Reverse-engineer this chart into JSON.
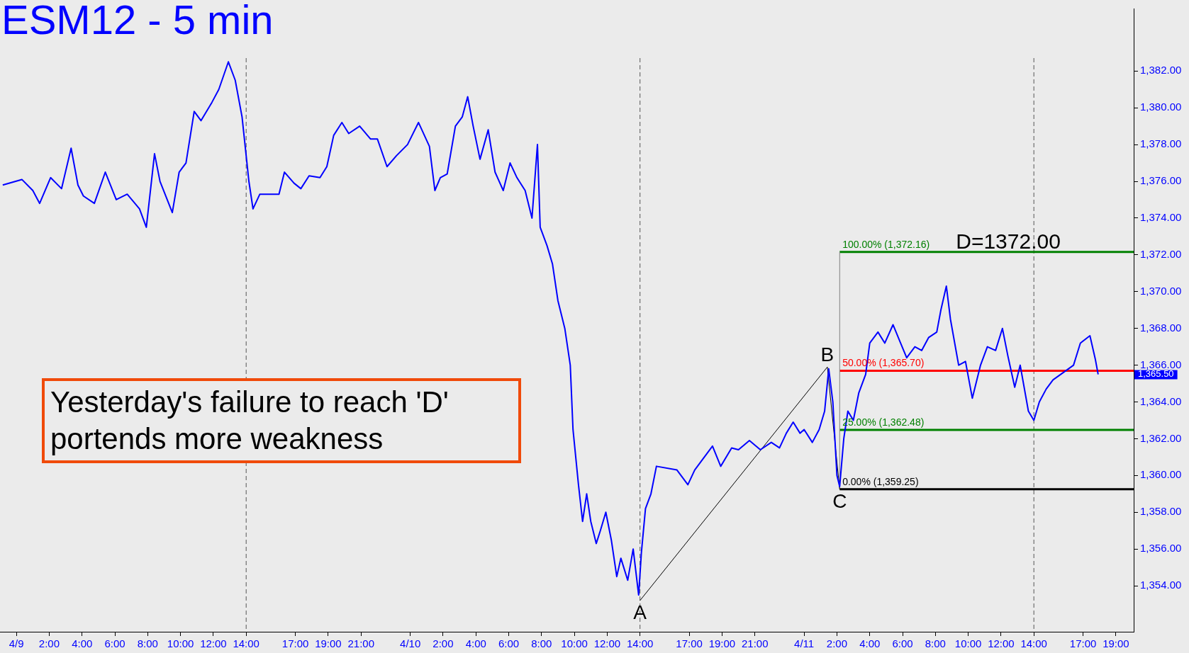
{
  "chart_data": {
    "type": "line",
    "title": "ESM12 - 5 min",
    "xlim": [
      "--04-08T23:00",
      "--04-11T20:05"
    ],
    "ylim": [
      1351.5,
      1385.4
    ],
    "xticks": [
      {
        "value": "--04-09T00:00",
        "label": "4/9"
      },
      {
        "value": "--04-09T02:00",
        "label": "2:00"
      },
      {
        "value": "--04-09T04:00",
        "label": "4:00"
      },
      {
        "value": "--04-09T06:00",
        "label": "6:00"
      },
      {
        "value": "--04-09T08:00",
        "label": "8:00"
      },
      {
        "value": "--04-09T10:00",
        "label": "10:00"
      },
      {
        "value": "--04-09T12:00",
        "label": "12:00"
      },
      {
        "value": "--04-09T14:00",
        "label": "14:00"
      },
      {
        "value": "--04-09T17:00",
        "label": "17:00"
      },
      {
        "value": "--04-09T19:00",
        "label": "19:00"
      },
      {
        "value": "--04-09T21:00",
        "label": "21:00"
      },
      {
        "value": "--04-10T00:00",
        "label": "4/10"
      },
      {
        "value": "--04-10T02:00",
        "label": "2:00"
      },
      {
        "value": "--04-10T04:00",
        "label": "4:00"
      },
      {
        "value": "--04-10T06:00",
        "label": "6:00"
      },
      {
        "value": "--04-10T08:00",
        "label": "8:00"
      },
      {
        "value": "--04-10T10:00",
        "label": "10:00"
      },
      {
        "value": "--04-10T12:00",
        "label": "12:00"
      },
      {
        "value": "--04-10T14:00",
        "label": "14:00"
      },
      {
        "value": "--04-10T17:00",
        "label": "17:00"
      },
      {
        "value": "--04-10T19:00",
        "label": "19:00"
      },
      {
        "value": "--04-10T21:00",
        "label": "21:00"
      },
      {
        "value": "--04-11T00:00",
        "label": "4/11"
      },
      {
        "value": "--04-11T02:00",
        "label": "2:00"
      },
      {
        "value": "--04-11T04:00",
        "label": "4:00"
      },
      {
        "value": "--04-11T06:00",
        "label": "6:00"
      },
      {
        "value": "--04-11T08:00",
        "label": "8:00"
      },
      {
        "value": "--04-11T10:00",
        "label": "10:00"
      },
      {
        "value": "--04-11T12:00",
        "label": "12:00"
      },
      {
        "value": "--04-11T14:00",
        "label": "14:00"
      },
      {
        "value": "--04-11T17:00",
        "label": "17:00"
      },
      {
        "value": "--04-11T19:00",
        "label": "19:00"
      }
    ],
    "yticks": [
      {
        "value": 1354,
        "label": "1,354.00"
      },
      {
        "value": 1356,
        "label": "1,356.00"
      },
      {
        "value": 1358,
        "label": "1,358.00"
      },
      {
        "value": 1360,
        "label": "1,360.00"
      },
      {
        "value": 1362,
        "label": "1,362.00"
      },
      {
        "value": 1364,
        "label": "1,364.00"
      },
      {
        "value": 1366,
        "label": "1,366.00"
      },
      {
        "value": 1368,
        "label": "1,368.00"
      },
      {
        "value": 1370,
        "label": "1,370.00"
      },
      {
        "value": 1372,
        "label": "1,372.00"
      },
      {
        "value": 1374,
        "label": "1,374.00"
      },
      {
        "value": 1376,
        "label": "1,376.00"
      },
      {
        "value": 1378,
        "label": "1,378.00"
      },
      {
        "value": 1380,
        "label": "1,380.00"
      },
      {
        "value": 1382,
        "label": "1,382.00"
      }
    ],
    "grid": false,
    "series": [
      {
        "color": "#0000ff",
        "x": [
          "--04-08T23:10",
          "--04-09T00:20",
          "--04-09T01:00",
          "--04-09T01:25",
          "--04-09T02:05",
          "--04-09T02:45",
          "--04-09T03:20",
          "--04-09T03:45",
          "--04-09T04:05",
          "--04-09T04:45",
          "--04-09T05:25",
          "--04-09T06:05",
          "--04-09T06:45",
          "--04-09T07:30",
          "--04-09T07:55",
          "--04-09T08:25",
          "--04-09T08:45",
          "--04-09T09:30",
          "--04-09T09:55",
          "--04-09T10:20",
          "--04-09T10:50",
          "--04-09T11:15",
          "--04-09T11:55",
          "--04-09T12:20",
          "--04-09T12:55",
          "--04-09T13:20",
          "--04-09T13:45",
          "--04-09T14:10",
          "--04-09T14:25",
          "--04-09T14:50",
          "--04-09T16:00",
          "--04-09T16:20",
          "--04-09T16:55",
          "--04-09T17:20",
          "--04-09T17:50",
          "--04-09T18:30",
          "--04-09T18:55",
          "--04-09T19:20",
          "--04-09T19:50",
          "--04-09T20:15",
          "--04-09T20:55",
          "--04-09T21:35",
          "--04-09T22:00",
          "--04-09T22:35",
          "--04-09T23:10",
          "--04-09T23:50",
          "--04-10T00:30",
          "--04-10T01:10",
          "--04-10T01:30",
          "--04-10T01:50",
          "--04-10T02:15",
          "--04-10T02:45",
          "--04-10T03:10",
          "--04-10T03:30",
          "--04-10T03:50",
          "--04-10T04:15",
          "--04-10T04:45",
          "--04-10T05:10",
          "--04-10T05:40",
          "--04-10T06:05",
          "--04-10T06:30",
          "--04-10T07:00",
          "--04-10T07:25",
          "--04-10T07:45",
          "--04-10T07:55",
          "--04-10T08:20",
          "--04-10T08:40",
          "--04-10T09:00",
          "--04-10T09:25",
          "--04-10T09:45",
          "--04-10T09:55",
          "--04-10T10:15",
          "--04-10T10:30",
          "--04-10T10:45",
          "--04-10T11:00",
          "--04-10T11:20",
          "--04-10T11:35",
          "--04-10T11:55",
          "--04-10T12:15",
          "--04-10T12:35",
          "--04-10T12:50",
          "--04-10T13:15",
          "--04-10T13:35",
          "--04-10T13:55",
          "--04-10T14:05",
          "--04-10T14:20",
          "--04-10T14:40",
          "--04-10T15:00",
          "--04-10T16:15",
          "--04-10T16:55",
          "--04-10T17:20",
          "--04-10T17:45",
          "--04-10T18:25",
          "--04-10T18:55",
          "--04-10T19:35",
          "--04-10T20:00",
          "--04-10T20:40",
          "--04-10T21:20",
          "--04-10T22:00",
          "--04-10T22:30",
          "--04-10T22:55",
          "--04-10T23:20",
          "--04-10T23:45",
          "--04-11T00:00",
          "--04-11T00:30",
          "--04-11T00:55",
          "--04-11T01:15",
          "--04-11T01:30",
          "--04-11T01:45",
          "--04-11T02:00",
          "--04-11T02:10",
          "--04-11T02:25",
          "--04-11T02:40",
          "--04-11T03:00",
          "--04-11T03:20",
          "--04-11T03:45",
          "--04-11T04:00",
          "--04-11T04:30",
          "--04-11T04:55",
          "--04-11T05:25",
          "--04-11T05:50",
          "--04-11T06:15",
          "--04-11T06:45",
          "--04-11T07:10",
          "--04-11T07:35",
          "--04-11T08:05",
          "--04-11T08:20",
          "--04-11T08:40",
          "--04-11T08:55",
          "--04-11T09:25",
          "--04-11T09:50",
          "--04-11T10:15",
          "--04-11T10:45",
          "--04-11T11:10",
          "--04-11T11:40",
          "--04-11T12:05",
          "--04-11T12:25",
          "--04-11T12:50",
          "--04-11T13:10",
          "--04-11T13:40",
          "--04-11T14:00",
          "--04-11T14:20",
          "--04-11T14:45",
          "--04-11T15:10",
          "--04-11T16:25",
          "--04-11T16:50",
          "--04-11T17:25",
          "--04-11T17:45",
          "--04-11T17:55"
        ],
        "values": [
          1375.8,
          1376.1,
          1375.5,
          1374.8,
          1376.2,
          1375.6,
          1377.8,
          1375.8,
          1375.2,
          1374.8,
          1376.5,
          1375,
          1375.3,
          1374.5,
          1373.5,
          1377.5,
          1376,
          1374.3,
          1376.5,
          1377,
          1379.8,
          1379.3,
          1380.3,
          1381,
          1382.5,
          1381.5,
          1379.5,
          1376,
          1374.5,
          1375.3,
          1375.3,
          1376.5,
          1375.9,
          1375.6,
          1376.3,
          1376.2,
          1376.8,
          1378.5,
          1379.2,
          1378.6,
          1379,
          1378.3,
          1378.3,
          1376.8,
          1377.4,
          1378,
          1379.2,
          1377.9,
          1375.5,
          1376.2,
          1376.4,
          1379,
          1379.5,
          1380.6,
          1379,
          1377.2,
          1378.8,
          1376.5,
          1375.5,
          1377,
          1376.2,
          1375.5,
          1374,
          1378,
          1373.5,
          1372.5,
          1371.5,
          1369.5,
          1368,
          1366,
          1362.5,
          1359.5,
          1357.5,
          1359,
          1357.5,
          1356.3,
          1357,
          1358,
          1356.5,
          1354.5,
          1355.5,
          1354.3,
          1356,
          1353.5,
          1355.8,
          1358.2,
          1359,
          1360.5,
          1360.3,
          1359.5,
          1360.3,
          1360.8,
          1361.6,
          1360.5,
          1361.5,
          1361.4,
          1361.9,
          1361.4,
          1361.8,
          1361.5,
          1362.3,
          1362.9,
          1362.3,
          1362.5,
          1361.8,
          1362.5,
          1363.5,
          1365.8,
          1364,
          1360,
          1359.4,
          1362,
          1363.5,
          1363,
          1364.5,
          1365.5,
          1367.2,
          1367.8,
          1367.2,
          1368.2,
          1367.3,
          1366.4,
          1367,
          1366.8,
          1367.5,
          1367.8,
          1369,
          1370.3,
          1368.5,
          1366,
          1366.2,
          1364.2,
          1366,
          1367,
          1366.8,
          1368,
          1366.5,
          1364.8,
          1366,
          1363.5,
          1363,
          1364,
          1364.7,
          1365.2,
          1366,
          1367.2,
          1367.6,
          1366.3,
          1365.5
        ]
      },
      {
        "color": "#000000",
        "x": [
          "--04-10T14:00",
          "--04-11T01:25",
          "--04-11T02:10"
        ],
        "values": [
          1353.2,
          1365.9,
          1359.25
        ]
      },
      {
        "color": "#808080",
        "x": [
          "--04-11T02:10",
          "--04-11T02:10"
        ],
        "values": [
          1359.25,
          1372.16
        ]
      },
      {
        "color": "#008000",
        "x": [
          "--04-11T02:10",
          "--04-11T20:05"
        ],
        "values": [
          1372.16,
          1372.16
        ]
      },
      {
        "color": "#ff0000",
        "x": [
          "--04-11T02:10",
          "--04-11T20:05"
        ],
        "values": [
          1365.7,
          1365.7
        ]
      },
      {
        "color": "#008000",
        "x": [
          "--04-11T02:10",
          "--04-11T20:05"
        ],
        "values": [
          1362.48,
          1362.48
        ]
      },
      {
        "color": "#000000",
        "x": [
          "--04-11T02:10",
          "--04-11T20:05"
        ],
        "values": [
          1359.25,
          1359.25
        ]
      }
    ],
    "ref_lines": [
      {
        "axis": "x",
        "value": "--04-09T14:00",
        "color": "#555555",
        "line_style": "dashed"
      },
      {
        "axis": "x",
        "value": "--04-10T14:00",
        "color": "#555555",
        "line_style": "dashed"
      },
      {
        "axis": "x",
        "value": "--04-11T14:00",
        "color": "#555555",
        "line_style": "dashed"
      }
    ],
    "annotations": [
      {
        "text": "A",
        "x": "--04-10T14:00",
        "y": 1353.2
      },
      {
        "text": "B",
        "x": "--04-11T01:25",
        "y": 1365.9
      },
      {
        "text": "C",
        "x": "--04-11T02:10",
        "y": 1359.25
      },
      {
        "text": "D=1372.00",
        "x": "--04-11T09:15",
        "y": 1372
      },
      {
        "text": "100.00% (1,372.16)",
        "x": "--04-11T02:20",
        "y": 1372.16
      },
      {
        "text": "50.00% (1,365.70)",
        "x": "--04-11T02:20",
        "y": 1365.7
      },
      {
        "text": "25.00% (1,362.48)",
        "x": "--04-11T02:20",
        "y": 1362.48
      },
      {
        "text": "0.00% (1,359.25)",
        "x": "--04-11T02:20",
        "y": 1359.25
      },
      {
        "text": "1,365.50",
        "x": "--04-11T20:05",
        "y": 1365.5
      },
      "Yesterday's failure to reach 'D' portends more weakness"
    ]
  }
}
